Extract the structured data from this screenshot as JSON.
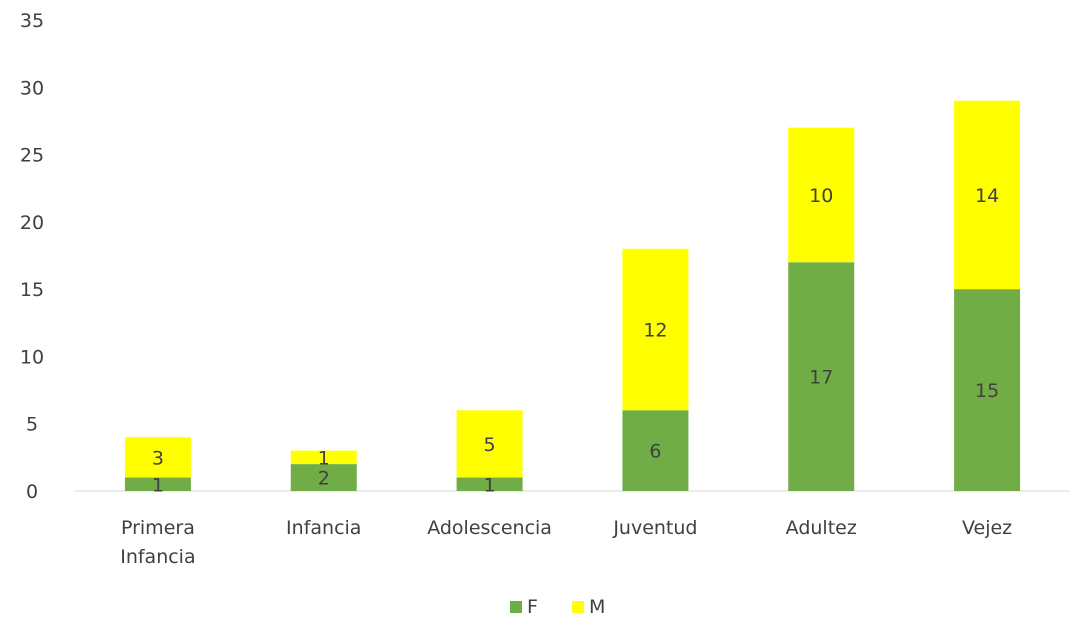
{
  "chart_data": {
    "type": "bar",
    "stacked": true,
    "title": "",
    "xlabel": "",
    "ylabel": "",
    "categories": [
      [
        "Primera",
        "Infancia"
      ],
      [
        "Infancia"
      ],
      [
        "Adolescencia"
      ],
      [
        "Juventud"
      ],
      [
        "Adultez"
      ],
      [
        "Vejez"
      ]
    ],
    "series": [
      {
        "name": "F",
        "color": "#70ad47",
        "values": [
          1,
          2,
          1,
          6,
          17,
          15
        ]
      },
      {
        "name": "M",
        "color": "#ffff00",
        "values": [
          3,
          1,
          5,
          12,
          10,
          14
        ]
      }
    ],
    "ylim": [
      0,
      35
    ],
    "yticks": [
      0,
      5,
      10,
      15,
      20,
      25,
      30,
      35
    ],
    "grid": false,
    "legend_position": "bottom"
  }
}
